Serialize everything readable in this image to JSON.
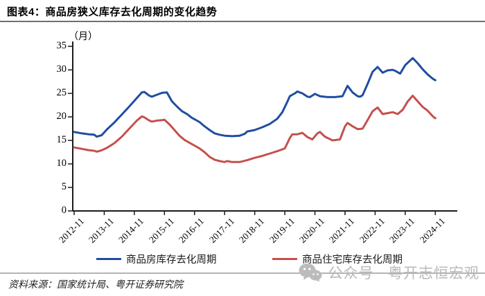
{
  "header": {
    "title": "图表4：商品房狭义库存去化周期的变化趋势"
  },
  "footer": {
    "source": "资料来源：国家统计局、粤开证券研究院",
    "watermark": "公众号 · 粤开志恒宏观"
  },
  "chart_data": {
    "type": "line",
    "title": "商品房狭义库存去化周期的变化趋势",
    "unit_label": "（月）",
    "ylabel": "月",
    "ylim": [
      0,
      35
    ],
    "yticks": [
      0,
      5,
      10,
      15,
      20,
      25,
      30,
      35
    ],
    "xticks": [
      "2012-11",
      "2013-11",
      "2014-11",
      "2015-11",
      "2016-11",
      "2017-11",
      "2018-11",
      "2019-11",
      "2020-11",
      "2021-11",
      "2022-11",
      "2023-11",
      "2024-11"
    ],
    "grid": false,
    "legend_position": "bottom",
    "axis_color": "#1a1a1a",
    "series": [
      {
        "name": "商品房库存去化周期",
        "color": "#1f4da1",
        "points": [
          [
            "2012-11",
            16.8
          ],
          [
            "2013-02",
            16.5
          ],
          [
            "2013-05",
            16.3
          ],
          [
            "2013-07",
            16.2
          ],
          [
            "2013-08",
            15.8
          ],
          [
            "2013-10",
            16.1
          ],
          [
            "2013-12",
            17.3
          ],
          [
            "2014-03",
            18.8
          ],
          [
            "2014-06",
            20.5
          ],
          [
            "2014-09",
            22.2
          ],
          [
            "2014-12",
            24.0
          ],
          [
            "2015-02",
            25.2
          ],
          [
            "2015-03",
            25.3
          ],
          [
            "2015-05",
            24.5
          ],
          [
            "2015-06",
            24.3
          ],
          [
            "2015-08",
            24.7
          ],
          [
            "2015-10",
            25.1
          ],
          [
            "2015-12",
            25.2
          ],
          [
            "2016-02",
            23.3
          ],
          [
            "2016-04",
            22.2
          ],
          [
            "2016-06",
            21.2
          ],
          [
            "2016-08",
            20.6
          ],
          [
            "2016-10",
            19.8
          ],
          [
            "2016-11",
            19.5
          ],
          [
            "2017-01",
            18.9
          ],
          [
            "2017-03",
            18.0
          ],
          [
            "2017-05",
            17.2
          ],
          [
            "2017-07",
            16.5
          ],
          [
            "2017-09",
            16.2
          ],
          [
            "2017-11",
            16.0
          ],
          [
            "2018-02",
            15.9
          ],
          [
            "2018-05",
            16.0
          ],
          [
            "2018-07",
            16.4
          ],
          [
            "2018-08",
            16.9
          ],
          [
            "2018-11",
            17.2
          ],
          [
            "2019-02",
            17.8
          ],
          [
            "2019-05",
            18.5
          ],
          [
            "2019-08",
            19.6
          ],
          [
            "2019-10",
            21.0
          ],
          [
            "2019-12",
            23.2
          ],
          [
            "2020-01",
            24.4
          ],
          [
            "2020-03",
            25.0
          ],
          [
            "2020-04",
            25.4
          ],
          [
            "2020-06",
            25.0
          ],
          [
            "2020-08",
            24.3
          ],
          [
            "2020-09",
            24.2
          ],
          [
            "2020-11",
            24.9
          ],
          [
            "2021-01",
            24.4
          ],
          [
            "2021-04",
            24.2
          ],
          [
            "2021-07",
            24.2
          ],
          [
            "2021-10",
            24.4
          ],
          [
            "2021-12",
            26.6
          ],
          [
            "2022-02",
            25.2
          ],
          [
            "2022-04",
            24.4
          ],
          [
            "2022-05",
            24.3
          ],
          [
            "2022-06",
            24.6
          ],
          [
            "2022-08",
            27.0
          ],
          [
            "2022-10",
            29.6
          ],
          [
            "2022-12",
            30.6
          ],
          [
            "2023-02",
            29.4
          ],
          [
            "2023-04",
            29.9
          ],
          [
            "2023-06",
            30.0
          ],
          [
            "2023-07",
            29.8
          ],
          [
            "2023-09",
            29.2
          ],
          [
            "2023-11",
            31.0
          ],
          [
            "2024-02",
            32.5
          ],
          [
            "2024-04",
            31.4
          ],
          [
            "2024-06",
            30.1
          ],
          [
            "2024-08",
            29.0
          ],
          [
            "2024-10",
            28.1
          ],
          [
            "2024-11",
            27.8
          ]
        ]
      },
      {
        "name": "商品住宅库存去化周期",
        "color": "#c4504b",
        "points": [
          [
            "2012-11",
            13.5
          ],
          [
            "2013-02",
            13.2
          ],
          [
            "2013-05",
            12.9
          ],
          [
            "2013-07",
            12.8
          ],
          [
            "2013-08",
            12.6
          ],
          [
            "2013-10",
            12.9
          ],
          [
            "2013-12",
            13.4
          ],
          [
            "2014-03",
            14.4
          ],
          [
            "2014-06",
            15.8
          ],
          [
            "2014-09",
            17.5
          ],
          [
            "2014-12",
            19.2
          ],
          [
            "2015-02",
            20.1
          ],
          [
            "2015-03",
            19.9
          ],
          [
            "2015-05",
            19.2
          ],
          [
            "2015-06",
            19.0
          ],
          [
            "2015-08",
            19.2
          ],
          [
            "2015-10",
            19.3
          ],
          [
            "2015-11",
            19.4
          ],
          [
            "2016-01",
            18.4
          ],
          [
            "2016-03",
            17.2
          ],
          [
            "2016-05",
            16.0
          ],
          [
            "2016-07",
            15.1
          ],
          [
            "2016-09",
            14.5
          ],
          [
            "2016-11",
            13.9
          ],
          [
            "2017-01",
            13.3
          ],
          [
            "2017-03",
            12.5
          ],
          [
            "2017-05",
            11.5
          ],
          [
            "2017-07",
            10.9
          ],
          [
            "2017-09",
            10.6
          ],
          [
            "2017-11",
            10.4
          ],
          [
            "2017-12",
            10.6
          ],
          [
            "2018-02",
            10.4
          ],
          [
            "2018-05",
            10.4
          ],
          [
            "2018-08",
            10.8
          ],
          [
            "2018-11",
            11.3
          ],
          [
            "2019-02",
            11.7
          ],
          [
            "2019-05",
            12.2
          ],
          [
            "2019-08",
            12.7
          ],
          [
            "2019-11",
            13.3
          ],
          [
            "2020-01",
            15.5
          ],
          [
            "2020-02",
            16.3
          ],
          [
            "2020-04",
            16.3
          ],
          [
            "2020-06",
            16.6
          ],
          [
            "2020-08",
            15.7
          ],
          [
            "2020-10",
            15.2
          ],
          [
            "2020-12",
            16.5
          ],
          [
            "2021-01",
            16.8
          ],
          [
            "2021-03",
            15.8
          ],
          [
            "2021-06",
            15.0
          ],
          [
            "2021-09",
            15.2
          ],
          [
            "2021-11",
            18.0
          ],
          [
            "2021-12",
            18.7
          ],
          [
            "2022-02",
            18.0
          ],
          [
            "2022-04",
            17.4
          ],
          [
            "2022-06",
            17.5
          ],
          [
            "2022-08",
            19.3
          ],
          [
            "2022-10",
            21.2
          ],
          [
            "2022-12",
            22.0
          ],
          [
            "2023-02",
            20.6
          ],
          [
            "2023-04",
            20.8
          ],
          [
            "2023-06",
            21.0
          ],
          [
            "2023-08",
            20.6
          ],
          [
            "2023-10",
            21.5
          ],
          [
            "2023-12",
            23.3
          ],
          [
            "2024-02",
            24.5
          ],
          [
            "2024-04",
            23.3
          ],
          [
            "2024-06",
            22.1
          ],
          [
            "2024-08",
            21.3
          ],
          [
            "2024-10",
            20.1
          ],
          [
            "2024-11",
            19.7
          ]
        ]
      }
    ]
  }
}
